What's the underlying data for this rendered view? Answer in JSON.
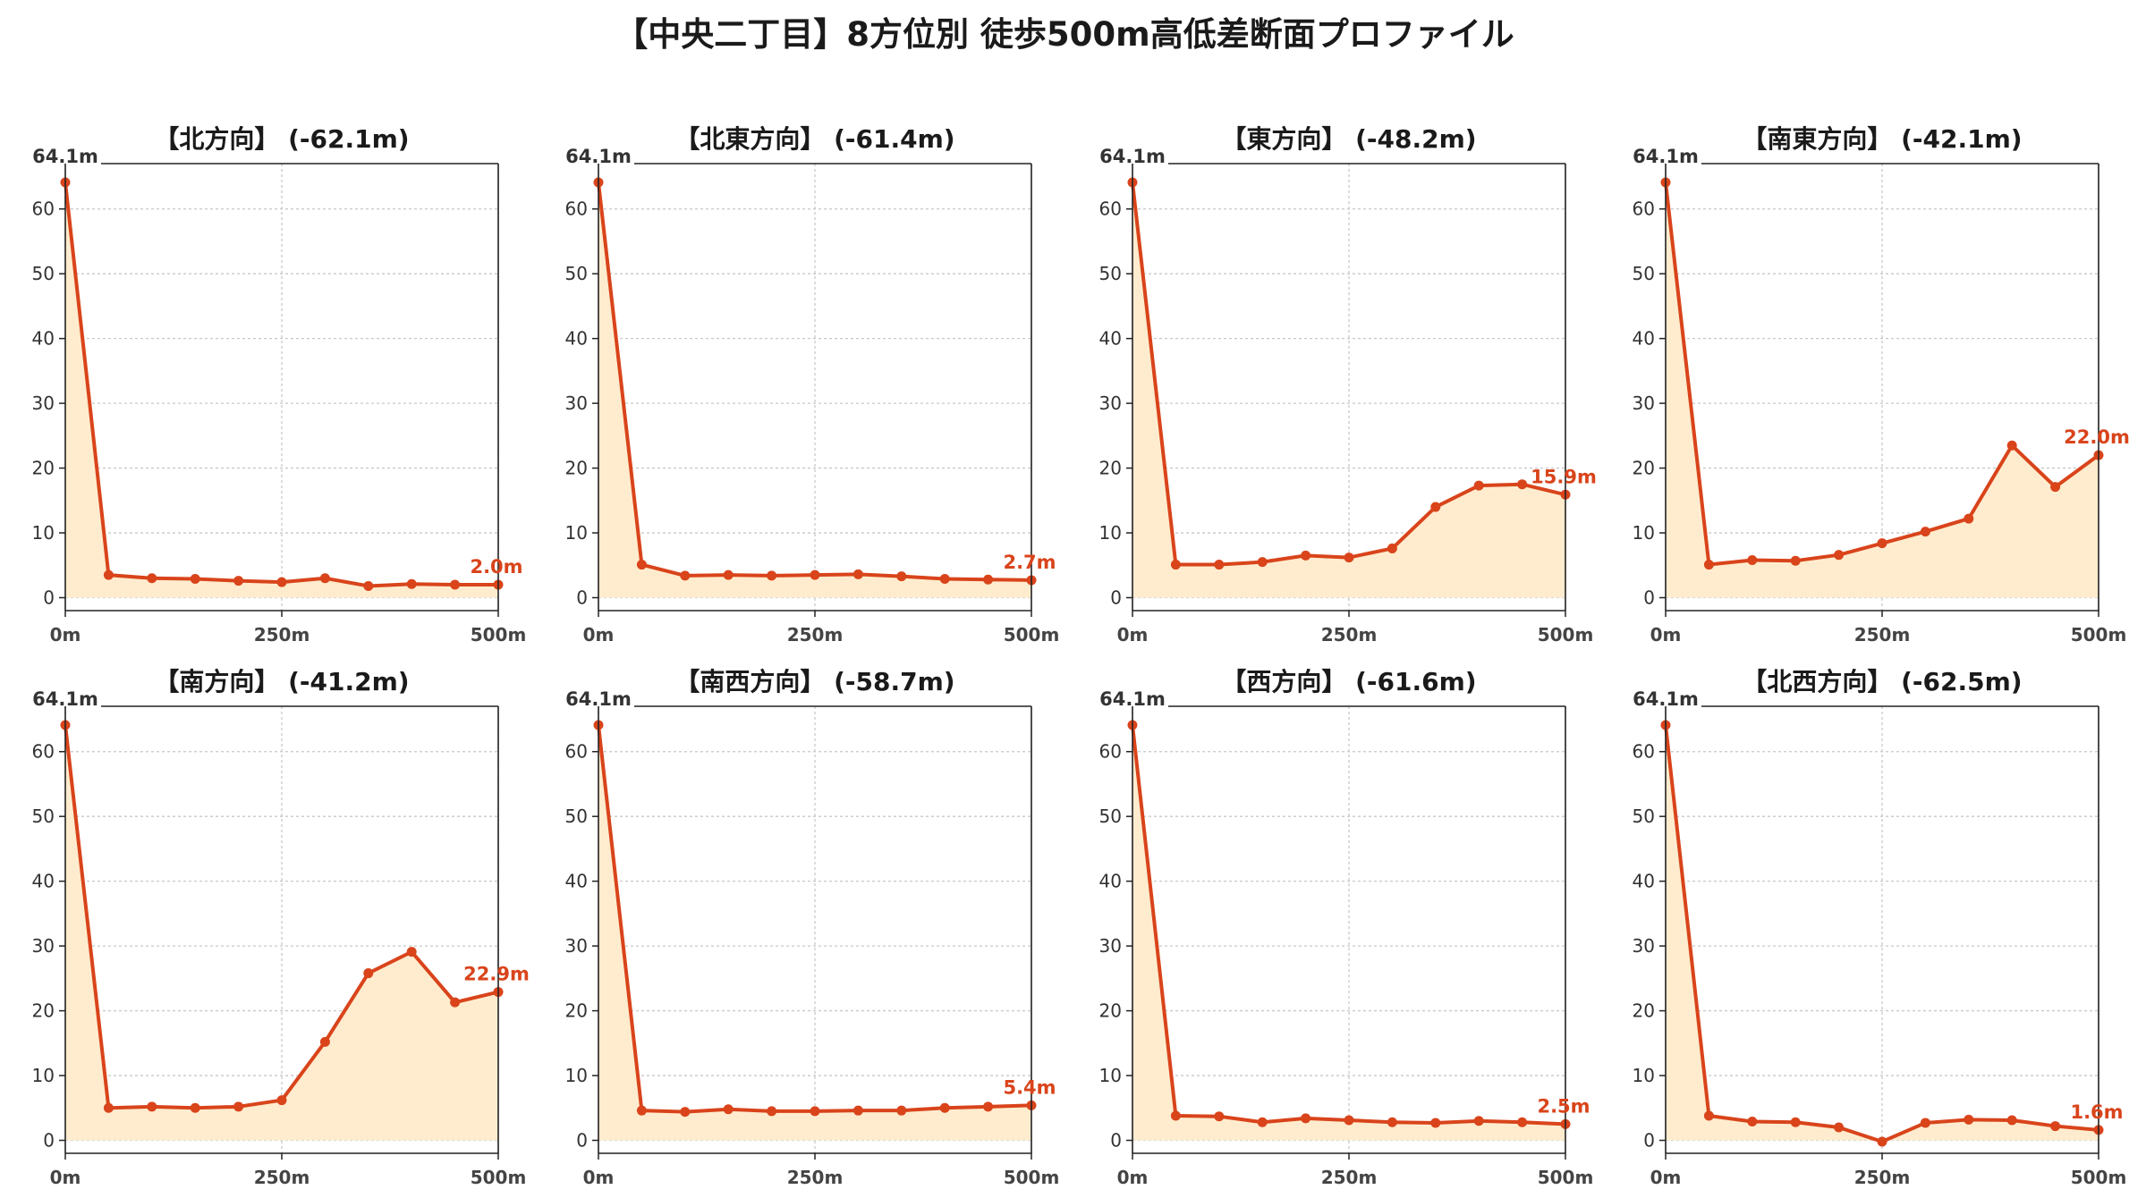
{
  "title": "【中央二丁目】8方位別 徒歩500m高低差断面プロファイル",
  "colors": {
    "line": "#d9441b",
    "fill": "#ffecce",
    "grid": "#c8c8c8",
    "axis": "#222222",
    "text": "#333333"
  },
  "chart_data": [
    {
      "type": "area",
      "title": "【北方向】 (-62.1m)",
      "x": [
        0,
        50,
        100,
        150,
        200,
        250,
        300,
        350,
        400,
        450,
        500
      ],
      "xticks": [
        "0m",
        "250m",
        "500m"
      ],
      "ylim": [
        -2,
        67
      ],
      "yticks": [
        0,
        10,
        20,
        30,
        40,
        50,
        60
      ],
      "series": [
        {
          "values": [
            64.1,
            3.5,
            3.0,
            2.9,
            2.6,
            2.4,
            3.0,
            1.8,
            2.1,
            2.0,
            2.0
          ]
        }
      ],
      "start_label": "64.1m",
      "end_label": "2.0m",
      "grid": true
    },
    {
      "type": "area",
      "title": "【北東方向】 (-61.4m)",
      "x": [
        0,
        50,
        100,
        150,
        200,
        250,
        300,
        350,
        400,
        450,
        500
      ],
      "xticks": [
        "0m",
        "250m",
        "500m"
      ],
      "ylim": [
        -2,
        67
      ],
      "yticks": [
        0,
        10,
        20,
        30,
        40,
        50,
        60
      ],
      "series": [
        {
          "values": [
            64.1,
            5.1,
            3.4,
            3.5,
            3.4,
            3.5,
            3.6,
            3.3,
            2.9,
            2.8,
            2.7
          ]
        }
      ],
      "start_label": "64.1m",
      "end_label": "2.7m",
      "grid": true
    },
    {
      "type": "area",
      "title": "【東方向】 (-48.2m)",
      "x": [
        0,
        50,
        100,
        150,
        200,
        250,
        300,
        350,
        400,
        450,
        500
      ],
      "xticks": [
        "0m",
        "250m",
        "500m"
      ],
      "ylim": [
        -2,
        67
      ],
      "yticks": [
        0,
        10,
        20,
        30,
        40,
        50,
        60
      ],
      "series": [
        {
          "values": [
            64.1,
            5.1,
            5.1,
            5.5,
            6.5,
            6.2,
            7.6,
            14.0,
            17.3,
            17.5,
            15.9
          ]
        }
      ],
      "start_label": "64.1m",
      "end_label": "15.9m",
      "grid": true
    },
    {
      "type": "area",
      "title": "【南東方向】 (-42.1m)",
      "x": [
        0,
        50,
        100,
        150,
        200,
        250,
        300,
        350,
        400,
        450,
        500
      ],
      "xticks": [
        "0m",
        "250m",
        "500m"
      ],
      "ylim": [
        -2,
        67
      ],
      "yticks": [
        0,
        10,
        20,
        30,
        40,
        50,
        60
      ],
      "series": [
        {
          "values": [
            64.1,
            5.1,
            5.8,
            5.7,
            6.6,
            8.4,
            10.2,
            12.2,
            23.5,
            17.1,
            22.0
          ]
        }
      ],
      "start_label": "64.1m",
      "end_label": "22.0m",
      "grid": true
    },
    {
      "type": "area",
      "title": "【南方向】 (-41.2m)",
      "x": [
        0,
        50,
        100,
        150,
        200,
        250,
        300,
        350,
        400,
        450,
        500
      ],
      "xticks": [
        "0m",
        "250m",
        "500m"
      ],
      "ylim": [
        -2,
        67
      ],
      "yticks": [
        0,
        10,
        20,
        30,
        40,
        50,
        60
      ],
      "series": [
        {
          "values": [
            64.1,
            5.0,
            5.2,
            5.0,
            5.2,
            6.2,
            15.2,
            25.8,
            29.1,
            21.3,
            22.9
          ]
        }
      ],
      "start_label": "64.1m",
      "end_label": "22.9m",
      "grid": true
    },
    {
      "type": "area",
      "title": "【南西方向】 (-58.7m)",
      "x": [
        0,
        50,
        100,
        150,
        200,
        250,
        300,
        350,
        400,
        450,
        500
      ],
      "xticks": [
        "0m",
        "250m",
        "500m"
      ],
      "ylim": [
        -2,
        67
      ],
      "yticks": [
        0,
        10,
        20,
        30,
        40,
        50,
        60
      ],
      "series": [
        {
          "values": [
            64.1,
            4.6,
            4.4,
            4.8,
            4.5,
            4.5,
            4.6,
            4.6,
            5.0,
            5.2,
            5.4
          ]
        }
      ],
      "start_label": "64.1m",
      "end_label": "5.4m",
      "grid": true
    },
    {
      "type": "area",
      "title": "【西方向】 (-61.6m)",
      "x": [
        0,
        50,
        100,
        150,
        200,
        250,
        300,
        350,
        400,
        450,
        500
      ],
      "xticks": [
        "0m",
        "250m",
        "500m"
      ],
      "ylim": [
        -2,
        67
      ],
      "yticks": [
        0,
        10,
        20,
        30,
        40,
        50,
        60
      ],
      "series": [
        {
          "values": [
            64.1,
            3.8,
            3.7,
            2.8,
            3.4,
            3.1,
            2.8,
            2.7,
            3.0,
            2.8,
            2.5
          ]
        }
      ],
      "start_label": "64.1m",
      "end_label": "2.5m",
      "grid": true
    },
    {
      "type": "area",
      "title": "【北西方向】 (-62.5m)",
      "x": [
        0,
        50,
        100,
        150,
        200,
        250,
        300,
        350,
        400,
        450,
        500
      ],
      "xticks": [
        "0m",
        "250m",
        "500m"
      ],
      "ylim": [
        -2,
        67
      ],
      "yticks": [
        0,
        10,
        20,
        30,
        40,
        50,
        60
      ],
      "series": [
        {
          "values": [
            64.1,
            3.8,
            2.9,
            2.8,
            2.0,
            -0.2,
            2.7,
            3.2,
            3.1,
            2.2,
            1.6
          ]
        }
      ],
      "start_label": "64.1m",
      "end_label": "1.6m",
      "grid": true
    }
  ]
}
